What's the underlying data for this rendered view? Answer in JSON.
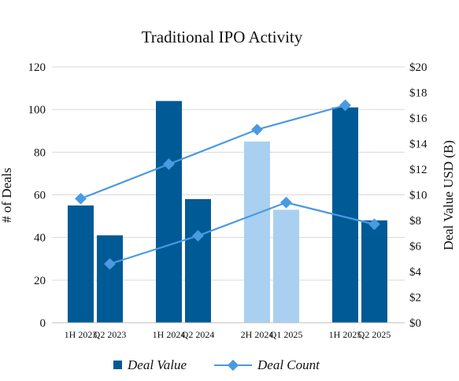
{
  "chart_data": {
    "type": "bar",
    "title": "Traditional IPO Activity",
    "ylabel_left": "# of Deals",
    "ylabel_right": "Deal Value USD (B)",
    "ylim_left": [
      0,
      120
    ],
    "ylim_right": [
      0,
      20
    ],
    "yticks_left": [
      "0",
      "20",
      "40",
      "60",
      "80",
      "100",
      "120"
    ],
    "yticks_right": [
      "$0",
      "$2",
      "$4",
      "$6",
      "$8",
      "$10",
      "$12",
      "$14",
      "$16",
      "$18",
      "$20"
    ],
    "categories": [
      "1H 2023",
      "Q2 2023",
      "1H 2024",
      "Q2 2024",
      "2H 2024",
      "Q1 2025",
      "1H 2025",
      "Q2 2025"
    ],
    "grid": true,
    "legend_position": "bottom",
    "series": [
      {
        "name": "Deal Value",
        "type": "bar",
        "axis": "left",
        "values": [
          55,
          41,
          104,
          58,
          85,
          53,
          101,
          48
        ],
        "colors": [
          "#005a96",
          "#005a96",
          "#005a96",
          "#005a96",
          "#a9d0f0",
          "#a9d0f0",
          "#005a96",
          "#005a96"
        ]
      },
      {
        "name": "Deal Count",
        "type": "line",
        "axis": "right",
        "lines": [
          {
            "points": [
              {
                "category": "1H 2023",
                "value": 9.7
              },
              {
                "category": "1H 2024",
                "value": 12.4
              },
              {
                "category": "2H 2024",
                "value": 15.1
              },
              {
                "category": "1H 2025",
                "value": 17.0
              }
            ]
          },
          {
            "points": [
              {
                "category": "Q2 2023",
                "value": 4.6
              },
              {
                "category": "Q2 2024",
                "value": 6.8
              },
              {
                "category": "Q1 2025",
                "value": 9.4
              },
              {
                "category": "Q2 2025",
                "value": 7.7
              }
            ]
          }
        ],
        "color": "#4a9ae0"
      }
    ],
    "legend": [
      {
        "label": "Deal Value",
        "marker": "square",
        "color": "#005a96"
      },
      {
        "label": "Deal Count",
        "marker": "line-diamond",
        "color": "#4a9ae0"
      }
    ]
  }
}
